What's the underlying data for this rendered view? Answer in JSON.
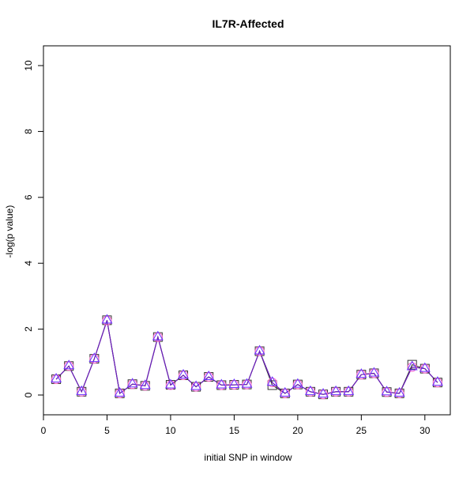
{
  "chart_data": {
    "type": "line",
    "title": "IL7R-Affected",
    "xlabel": "initial SNP in window",
    "ylabel": "-log(p value)",
    "xlim": [
      0,
      32
    ],
    "ylim": [
      -0.6,
      10.6
    ],
    "x_ticks": [
      0,
      5,
      10,
      15,
      20,
      25,
      30
    ],
    "y_ticks": [
      0,
      2,
      4,
      6,
      8,
      10
    ],
    "grid": false,
    "legend": "none",
    "x": [
      1,
      2,
      3,
      4,
      5,
      6,
      7,
      8,
      9,
      10,
      11,
      12,
      13,
      14,
      15,
      16,
      17,
      18,
      19,
      20,
      21,
      22,
      23,
      24,
      25,
      26,
      27,
      28,
      29,
      30,
      31
    ],
    "series": [
      {
        "marker": "square",
        "color": "#333333",
        "values": [
          0.48,
          0.88,
          0.1,
          1.1,
          2.27,
          0.05,
          0.33,
          0.28,
          1.76,
          0.31,
          0.6,
          0.25,
          0.55,
          0.3,
          0.31,
          0.32,
          1.33,
          0.3,
          0.05,
          0.32,
          0.1,
          0.02,
          0.1,
          0.1,
          0.62,
          0.66,
          0.09,
          0.05,
          0.92,
          0.8,
          0.38
        ]
      },
      {
        "marker": "circle",
        "color": "#ff66cc",
        "values": [
          0.48,
          0.88,
          0.1,
          1.1,
          2.26,
          0.05,
          0.33,
          0.28,
          1.76,
          0.3,
          0.6,
          0.25,
          0.55,
          0.3,
          0.31,
          0.32,
          1.33,
          0.38,
          0.05,
          0.32,
          0.1,
          0.02,
          0.1,
          0.1,
          0.62,
          0.66,
          0.09,
          0.05,
          0.85,
          0.8,
          0.38
        ]
      },
      {
        "marker": "triangle",
        "color": "#6633ff",
        "values": [
          0.48,
          0.88,
          0.1,
          1.1,
          2.27,
          0.05,
          0.33,
          0.28,
          1.76,
          0.3,
          0.6,
          0.25,
          0.55,
          0.3,
          0.31,
          0.32,
          1.33,
          0.38,
          0.05,
          0.32,
          0.1,
          0.02,
          0.1,
          0.1,
          0.62,
          0.66,
          0.09,
          0.05,
          0.85,
          0.8,
          0.38
        ]
      }
    ],
    "line_color": "#6a1fb8"
  }
}
